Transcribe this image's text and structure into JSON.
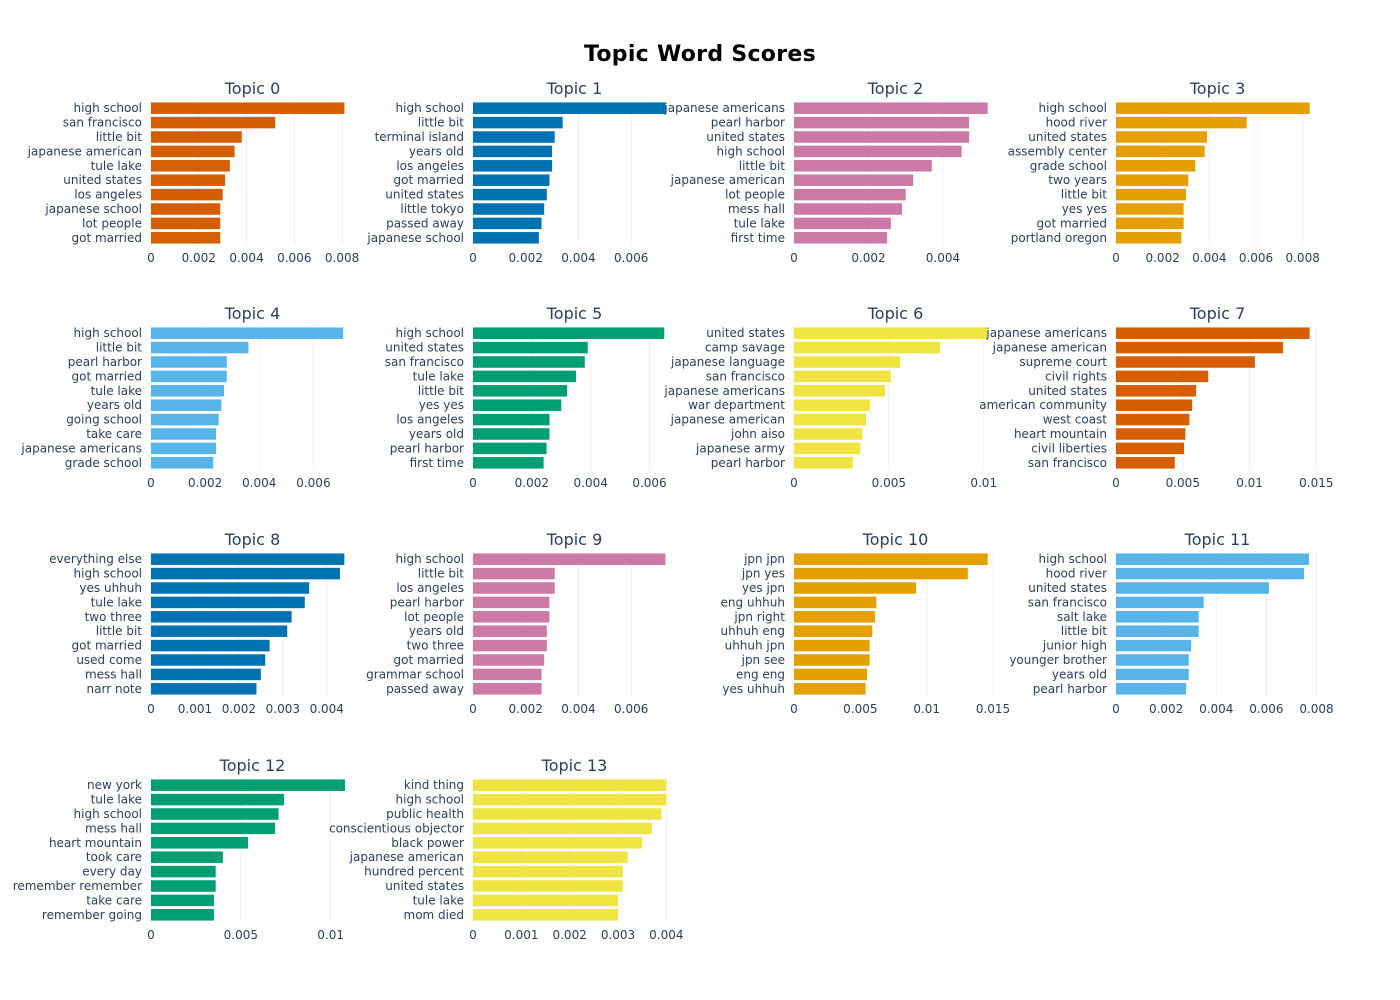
{
  "title": "Topic Word Scores",
  "chart_data": [
    {
      "type": "bar",
      "orientation": "horizontal",
      "title": "Topic 0",
      "color": "#D55E00",
      "categories": [
        "high school",
        "san francisco",
        "little bit",
        "japanese american",
        "tule lake",
        "united states",
        "los angeles",
        "japanese school",
        "lot people",
        "got married"
      ],
      "values": [
        0.0081,
        0.0052,
        0.0038,
        0.0035,
        0.0033,
        0.0031,
        0.003,
        0.0029,
        0.0029,
        0.0029
      ],
      "xlim": [
        0,
        0.0085
      ],
      "xticks": [
        0,
        0.002,
        0.004,
        0.006,
        0.008
      ],
      "xtick_labels": [
        "0",
        "0.002",
        "0.004",
        "0.006",
        "0.008"
      ]
    },
    {
      "type": "bar",
      "orientation": "horizontal",
      "title": "Topic 1",
      "color": "#0072B2",
      "categories": [
        "high school",
        "little bit",
        "terminal island",
        "years old",
        "los angeles",
        "got married",
        "united states",
        "little tokyo",
        "passed away",
        "japanese school"
      ],
      "values": [
        0.0073,
        0.0034,
        0.0031,
        0.003,
        0.003,
        0.0029,
        0.0028,
        0.0027,
        0.0026,
        0.0025
      ],
      "xlim": [
        0,
        0.0077
      ],
      "xticks": [
        0,
        0.002,
        0.004,
        0.006
      ],
      "xtick_labels": [
        "0",
        "0.002",
        "0.004",
        "0.006"
      ]
    },
    {
      "type": "bar",
      "orientation": "horizontal",
      "title": "Topic 2",
      "color": "#CC79A7",
      "categories": [
        "japanese americans",
        "pearl harbor",
        "united states",
        "high school",
        "little bit",
        "japanese american",
        "lot people",
        "mess hall",
        "tule lake",
        "first time"
      ],
      "values": [
        0.0052,
        0.0047,
        0.0047,
        0.0045,
        0.0037,
        0.0032,
        0.003,
        0.0029,
        0.0026,
        0.0025
      ],
      "xlim": [
        0,
        0.00545
      ],
      "xticks": [
        0,
        0.002,
        0.004
      ],
      "xtick_labels": [
        "0",
        "0.002",
        "0.004"
      ]
    },
    {
      "type": "bar",
      "orientation": "horizontal",
      "title": "Topic 3",
      "color": "#E69F00",
      "categories": [
        "high school",
        "hood river",
        "united states",
        "assembly center",
        "grade school",
        "two years",
        "little bit",
        "yes yes",
        "got married",
        "portland oregon"
      ],
      "values": [
        0.0083,
        0.0056,
        0.0039,
        0.0038,
        0.0034,
        0.0031,
        0.003,
        0.0029,
        0.0029,
        0.0028
      ],
      "xlim": [
        0,
        0.0087
      ],
      "xticks": [
        0,
        0.002,
        0.004,
        0.006,
        0.008
      ],
      "xtick_labels": [
        "0",
        "0.002",
        "0.004",
        "0.006",
        "0.008"
      ]
    },
    {
      "type": "bar",
      "orientation": "horizontal",
      "title": "Topic 4",
      "color": "#56B4E9",
      "categories": [
        "high school",
        "little bit",
        "pearl harbor",
        "got married",
        "tule lake",
        "years old",
        "going school",
        "take care",
        "japanese americans",
        "grade school"
      ],
      "values": [
        0.0071,
        0.0036,
        0.0028,
        0.0028,
        0.0027,
        0.0026,
        0.0025,
        0.0024,
        0.0024,
        0.0023
      ],
      "xlim": [
        0,
        0.0075
      ],
      "xticks": [
        0,
        0.002,
        0.004,
        0.006
      ],
      "xtick_labels": [
        "0",
        "0.002",
        "0.004",
        "0.006"
      ]
    },
    {
      "type": "bar",
      "orientation": "horizontal",
      "title": "Topic 5",
      "color": "#009E73",
      "categories": [
        "high school",
        "united states",
        "san francisco",
        "tule lake",
        "little bit",
        "yes yes",
        "los angeles",
        "years old",
        "pearl harbor",
        "first time"
      ],
      "values": [
        0.0065,
        0.0039,
        0.0038,
        0.0035,
        0.0032,
        0.003,
        0.0026,
        0.0026,
        0.0025,
        0.0024
      ],
      "xlim": [
        0,
        0.0069
      ],
      "xticks": [
        0,
        0.002,
        0.004,
        0.006
      ],
      "xtick_labels": [
        "0",
        "0.002",
        "0.004",
        "0.006"
      ]
    },
    {
      "type": "bar",
      "orientation": "horizontal",
      "title": "Topic 6",
      "color": "#F0E442",
      "categories": [
        "united states",
        "camp savage",
        "japanese language",
        "san francisco",
        "japanese americans",
        "war department",
        "japanese american",
        "john aiso",
        "japanese army",
        "pearl harbor"
      ],
      "values": [
        0.0102,
        0.0077,
        0.0056,
        0.0051,
        0.0048,
        0.004,
        0.0038,
        0.0036,
        0.0035,
        0.0031
      ],
      "xlim": [
        0,
        0.0107
      ],
      "xticks": [
        0,
        0.005,
        0.01
      ],
      "xtick_labels": [
        "0",
        "0.005",
        "0.01"
      ]
    },
    {
      "type": "bar",
      "orientation": "horizontal",
      "title": "Topic 7",
      "color": "#D55E00",
      "categories": [
        "japanese americans",
        "japanese american",
        "supreme court",
        "civil rights",
        "united states",
        "american community",
        "west coast",
        "heart mountain",
        "civil liberties",
        "san francisco"
      ],
      "values": [
        0.0145,
        0.0125,
        0.0104,
        0.0069,
        0.006,
        0.0057,
        0.0055,
        0.0052,
        0.0051,
        0.0044
      ],
      "xlim": [
        0,
        0.0152
      ],
      "xticks": [
        0,
        0.005,
        0.01,
        0.015
      ],
      "xtick_labels": [
        "0",
        "0.005",
        "0.01",
        "0.015"
      ]
    },
    {
      "type": "bar",
      "orientation": "horizontal",
      "title": "Topic 8",
      "color": "#0072B2",
      "categories": [
        "everything else",
        "high school",
        "yes uhhuh",
        "tule lake",
        "two three",
        "little bit",
        "got married",
        "used come",
        "mess hall",
        "narr note"
      ],
      "values": [
        0.0044,
        0.0043,
        0.0036,
        0.0035,
        0.0032,
        0.0031,
        0.0027,
        0.0026,
        0.0025,
        0.0024
      ],
      "xlim": [
        0,
        0.00462
      ],
      "xticks": [
        0,
        0.001,
        0.002,
        0.003,
        0.004
      ],
      "xtick_labels": [
        "0",
        "0.001",
        "0.002",
        "0.003",
        "0.004"
      ]
    },
    {
      "type": "bar",
      "orientation": "horizontal",
      "title": "Topic 9",
      "color": "#CC79A7",
      "categories": [
        "high school",
        "little bit",
        "los angeles",
        "pearl harbor",
        "lot people",
        "years old",
        "two three",
        "got married",
        "grammar school",
        "passed away"
      ],
      "values": [
        0.0073,
        0.0031,
        0.0031,
        0.0029,
        0.0029,
        0.0028,
        0.0028,
        0.0027,
        0.0026,
        0.0026
      ],
      "xlim": [
        0,
        0.0077
      ],
      "xticks": [
        0,
        0.002,
        0.004,
        0.006
      ],
      "xtick_labels": [
        "0",
        "0.002",
        "0.004",
        "0.006"
      ]
    },
    {
      "type": "bar",
      "orientation": "horizontal",
      "title": "Topic 10",
      "color": "#E69F00",
      "categories": [
        "jpn jpn",
        "jpn yes",
        "yes jpn",
        "eng uhhuh",
        "jpn right",
        "uhhuh eng",
        "uhhuh jpn",
        "jpn see",
        "eng eng",
        "yes uhhuh"
      ],
      "values": [
        0.0146,
        0.0131,
        0.0092,
        0.0062,
        0.0061,
        0.0059,
        0.0057,
        0.0057,
        0.0055,
        0.0054
      ],
      "xlim": [
        0,
        0.0153
      ],
      "xticks": [
        0,
        0.005,
        0.01,
        0.015
      ],
      "xtick_labels": [
        "0",
        "0.005",
        "0.01",
        "0.015"
      ]
    },
    {
      "type": "bar",
      "orientation": "horizontal",
      "title": "Topic 11",
      "color": "#56B4E9",
      "categories": [
        "high school",
        "hood river",
        "united states",
        "san francisco",
        "salt lake",
        "little bit",
        "junior high",
        "younger brother",
        "years old",
        "pearl harbor"
      ],
      "values": [
        0.0077,
        0.0075,
        0.0061,
        0.0035,
        0.0033,
        0.0033,
        0.003,
        0.0029,
        0.0029,
        0.0028
      ],
      "xlim": [
        0,
        0.0081
      ],
      "xticks": [
        0,
        0.002,
        0.004,
        0.006,
        0.008
      ],
      "xtick_labels": [
        "0",
        "0.002",
        "0.004",
        "0.006",
        "0.008"
      ]
    },
    {
      "type": "bar",
      "orientation": "horizontal",
      "title": "Topic 12",
      "color": "#009E73",
      "categories": [
        "new york",
        "tule lake",
        "high school",
        "mess hall",
        "heart mountain",
        "took care",
        "every day",
        "remember remember",
        "take care",
        "remember going"
      ],
      "values": [
        0.0108,
        0.0074,
        0.0071,
        0.0069,
        0.0054,
        0.004,
        0.0036,
        0.0036,
        0.0035,
        0.0035
      ],
      "xlim": [
        0,
        0.0113
      ],
      "xticks": [
        0,
        0.005,
        0.01
      ],
      "xtick_labels": [
        "0",
        "0.005",
        "0.01"
      ]
    },
    {
      "type": "bar",
      "orientation": "horizontal",
      "title": "Topic 13",
      "color": "#F0E442",
      "categories": [
        "kind thing",
        "high school",
        "public health",
        "conscientious objector",
        "black power",
        "japanese american",
        "hundred percent",
        "united states",
        "tule lake",
        "mom died"
      ],
      "values": [
        0.004,
        0.004,
        0.0039,
        0.0037,
        0.0035,
        0.0032,
        0.0031,
        0.0031,
        0.003,
        0.003
      ],
      "xlim": [
        0,
        0.0042
      ],
      "xticks": [
        0,
        0.001,
        0.002,
        0.003,
        0.004
      ],
      "xtick_labels": [
        "0",
        "0.001",
        "0.002",
        "0.003",
        "0.004"
      ]
    }
  ]
}
